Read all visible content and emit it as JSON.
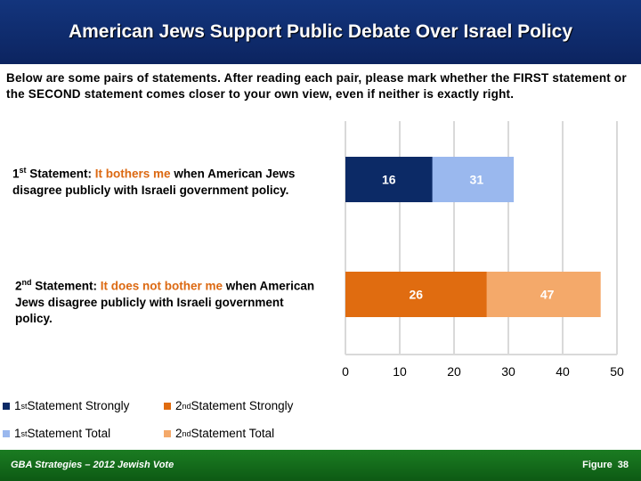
{
  "title": "American Jews Support Public Debate Over Israel Policy",
  "intro": "Below are some pairs of statements. After reading each pair, please mark whether the FIRST statement or the SECOND statement comes closer to your own view, even if neither is exactly right.",
  "statements": [
    {
      "ordinal": "1",
      "ordinal_suffix": "st",
      "prefix": " Statement: ",
      "highlight": "It bothers me",
      "rest": " when American Jews disagree publicly with Israeli government policy."
    },
    {
      "ordinal": "2",
      "ordinal_suffix": "nd",
      "prefix": " Statement: ",
      "highlight": "It does not bother me",
      "rest": " when American Jews disagree publicly with Israeli government policy."
    }
  ],
  "legend": [
    {
      "num": "1",
      "sup": "st",
      "text": " Statement Strongly",
      "color": "#0c2a66"
    },
    {
      "num": "2",
      "sup": "nd",
      "text": " Statement Strongly",
      "color": "#e06c10"
    },
    {
      "num": "1",
      "sup": "st",
      "text": " Statement Total",
      "color": "#9ab8ee"
    },
    {
      "num": "2",
      "sup": "nd",
      "text": " Statement Total",
      "color": "#f4a96a"
    }
  ],
  "footer": {
    "left": "GBA Strategies – 2012 Jewish Vote",
    "figure_label": "Figure",
    "figure_number": "38"
  },
  "chart_data": {
    "type": "bar",
    "orientation": "horizontal",
    "categories": [
      "1st Statement",
      "2nd Statement"
    ],
    "series": [
      {
        "name": "Statement Strongly",
        "values": [
          16,
          26
        ]
      },
      {
        "name": "Statement Total",
        "values": [
          31,
          47
        ]
      }
    ],
    "colors": {
      "strong": [
        "#0c2a66",
        "#e06c10"
      ],
      "total": [
        "#9ab8ee",
        "#f4a96a"
      ]
    },
    "xlim": [
      0,
      50
    ],
    "xticks": [
      0,
      10,
      20,
      30,
      40,
      50
    ],
    "grid": true
  }
}
